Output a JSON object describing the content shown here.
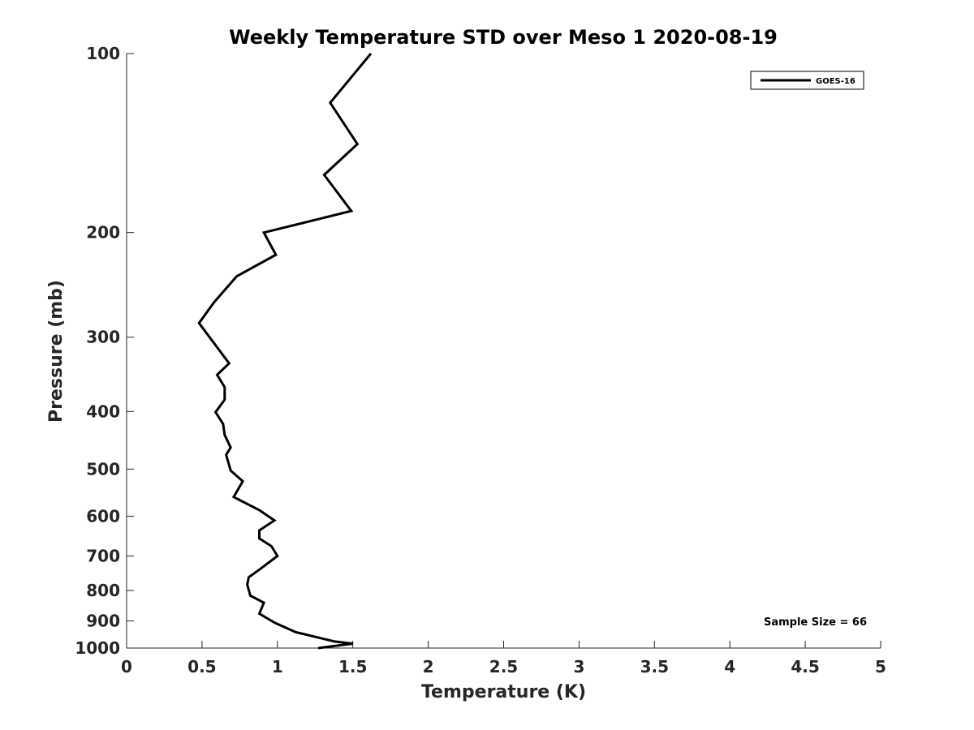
{
  "chart_data": {
    "type": "line",
    "title": "Weekly Temperature STD over Meso 1 2020-08-19",
    "xlabel": "Temperature (K)",
    "ylabel": "Pressure (mb)",
    "xlim": [
      0,
      5
    ],
    "ylim": [
      100,
      1000
    ],
    "y_scale": "log",
    "y_reversed": true,
    "grid": false,
    "legend_position": "top-right",
    "x_ticks": [
      0,
      0.5,
      1,
      1.5,
      2,
      2.5,
      3,
      3.5,
      4,
      4.5,
      5
    ],
    "x_tick_labels": [
      "0",
      "0.5",
      "1",
      "1.5",
      "2",
      "2.5",
      "3",
      "3.5",
      "4",
      "4.5",
      "5"
    ],
    "y_ticks": [
      100,
      200,
      300,
      400,
      500,
      600,
      700,
      800,
      900,
      1000
    ],
    "y_tick_labels": [
      "100",
      "200",
      "300",
      "400",
      "500",
      "600",
      "700",
      "800",
      "900",
      "1000"
    ],
    "series": [
      {
        "name": "GOES-16",
        "color": "#000000",
        "points": [
          [
            1.62,
            100
          ],
          [
            1.35,
            121
          ],
          [
            1.53,
            142
          ],
          [
            1.31,
            160
          ],
          [
            1.49,
            184
          ],
          [
            0.91,
            200
          ],
          [
            0.99,
            218
          ],
          [
            0.73,
            237
          ],
          [
            0.58,
            262
          ],
          [
            0.48,
            284
          ],
          [
            0.68,
            332
          ],
          [
            0.6,
            347
          ],
          [
            0.65,
            364
          ],
          [
            0.65,
            382
          ],
          [
            0.59,
            401
          ],
          [
            0.64,
            420
          ],
          [
            0.65,
            438
          ],
          [
            0.69,
            460
          ],
          [
            0.66,
            473
          ],
          [
            0.69,
            503
          ],
          [
            0.77,
            524
          ],
          [
            0.71,
            557
          ],
          [
            0.88,
            586
          ],
          [
            0.98,
            610
          ],
          [
            0.88,
            634
          ],
          [
            0.88,
            654
          ],
          [
            0.96,
            674
          ],
          [
            1.0,
            700
          ],
          [
            0.88,
            738
          ],
          [
            0.81,
            760
          ],
          [
            0.8,
            782
          ],
          [
            0.82,
            816
          ],
          [
            0.91,
            839
          ],
          [
            0.88,
            875
          ],
          [
            0.98,
            906
          ],
          [
            1.12,
            940
          ],
          [
            1.38,
            975
          ],
          [
            1.5,
            983
          ],
          [
            1.27,
            1000
          ]
        ]
      }
    ],
    "annotations": [
      "Sample Size = 66"
    ]
  }
}
